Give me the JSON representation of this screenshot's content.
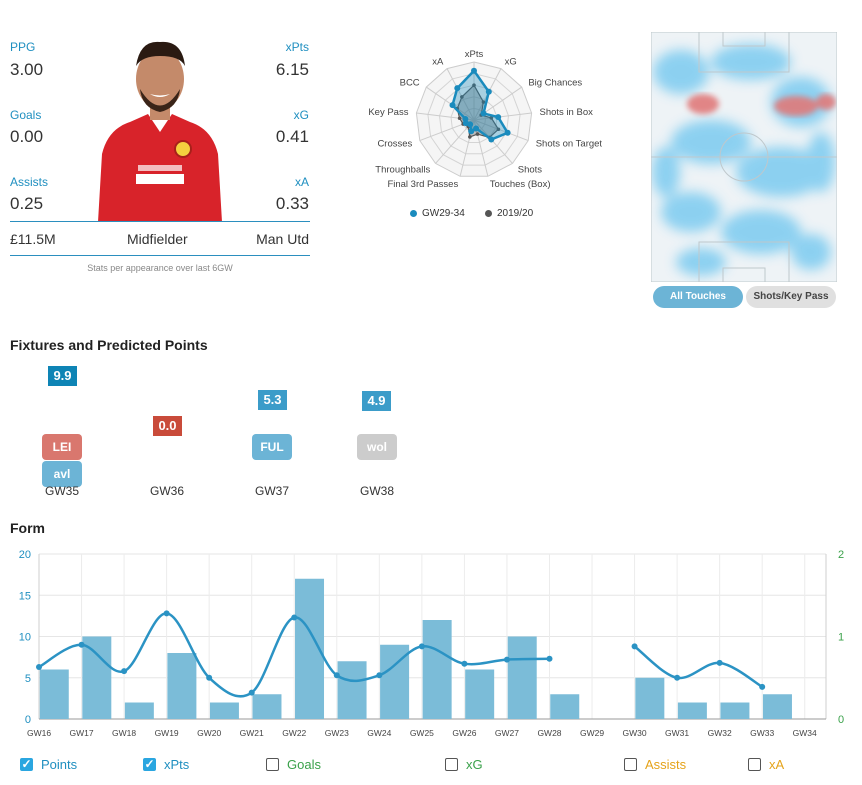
{
  "player": {
    "stats": [
      {
        "label": "PPG",
        "value": "3.00",
        "side": "left"
      },
      {
        "label": "xPts",
        "value": "6.15",
        "side": "right"
      },
      {
        "label": "Goals",
        "value": "0.00",
        "side": "left"
      },
      {
        "label": "xG",
        "value": "0.41",
        "side": "right"
      },
      {
        "label": "Assists",
        "value": "0.25",
        "side": "left"
      },
      {
        "label": "xA",
        "value": "0.33",
        "side": "right"
      }
    ],
    "price": "£11.5M",
    "position": "Midfielder",
    "team": "Man Utd",
    "footnote": "Stats per appearance over last 6GW"
  },
  "radar": {
    "axes": [
      "xPts",
      "xG",
      "Big Chances",
      "Shots in Box",
      "Shots on Target",
      "Shots",
      "Touches (Box)",
      "Final 3rd Passes",
      "Throughballs",
      "Crosses",
      "Key Pass",
      "BCC",
      "xA"
    ],
    "series": [
      {
        "name": "GW29-34",
        "color": "#1a8bbd",
        "values": [
          0.85,
          0.55,
          0.2,
          0.42,
          0.62,
          0.45,
          0.15,
          0.2,
          0.1,
          0.15,
          0.15,
          0.45,
          0.62
        ]
      },
      {
        "name": "2019/20",
        "color": "#555555",
        "values": [
          0.6,
          0.35,
          0.15,
          0.3,
          0.45,
          0.4,
          0.25,
          0.3,
          0.15,
          0.2,
          0.25,
          0.35,
          0.45
        ]
      }
    ]
  },
  "heatmap": {
    "tabs": [
      {
        "label": "All Touches",
        "active": true
      },
      {
        "label": "Shots/Key Pass",
        "active": false
      }
    ]
  },
  "fixtures": {
    "title": "Fixtures and Predicted Points",
    "items": [
      {
        "gw": "GW35",
        "points": "9.9",
        "points_color": "#0e84b5",
        "opponents": [
          {
            "name": "LEI",
            "color": "#d9776e"
          },
          {
            "name": "avl",
            "color": "#6cb4d6"
          }
        ]
      },
      {
        "gw": "GW36",
        "points": "0.0",
        "points_color": "#c94b3a",
        "opponents": []
      },
      {
        "gw": "GW37",
        "points": "5.3",
        "points_color": "#3b9cc9",
        "opponents": [
          {
            "name": "FUL",
            "color": "#6cb4d6"
          }
        ]
      },
      {
        "gw": "GW38",
        "points": "4.9",
        "points_color": "#3b9cc9",
        "opponents": [
          {
            "name": "wol",
            "color": "#cccccc"
          }
        ]
      }
    ]
  },
  "form": {
    "title": "Form",
    "legend": [
      {
        "label": "Points",
        "checked": true,
        "color": "#1f8fc0"
      },
      {
        "label": "xPts",
        "checked": true,
        "color": "#1f8fc0"
      },
      {
        "label": "Goals",
        "checked": false,
        "color": "#3aa14a"
      },
      {
        "label": "xG",
        "checked": false,
        "color": "#3aa14a"
      },
      {
        "label": "Assists",
        "checked": false,
        "color": "#e5a31a"
      },
      {
        "label": "xA",
        "checked": false,
        "color": "#e5a31a"
      }
    ]
  },
  "chart_data": {
    "type": "bar",
    "categories": [
      "GW16",
      "GW17",
      "GW18",
      "GW19",
      "GW20",
      "GW21",
      "GW22",
      "GW23",
      "GW24",
      "GW25",
      "GW26",
      "GW27",
      "GW28",
      "GW29",
      "GW30",
      "GW31",
      "GW32",
      "GW33",
      "GW34"
    ],
    "series": [
      {
        "name": "Points",
        "type": "bar",
        "color": "#7bbcd8",
        "values": [
          6,
          10,
          2,
          8,
          2,
          3,
          17,
          7,
          9,
          12,
          6,
          10,
          3,
          null,
          5,
          2,
          2,
          3,
          null
        ]
      },
      {
        "name": "xPts",
        "type": "line",
        "color": "#2b93c4",
        "values": [
          6.3,
          9,
          5.8,
          12.8,
          5,
          3.2,
          12.3,
          5.3,
          5.3,
          8.8,
          6.7,
          7.2,
          7.3,
          null,
          8.8,
          5,
          6.8,
          3.9,
          null
        ]
      }
    ],
    "ylim": [
      0,
      20
    ],
    "yticks": [
      "0",
      "5",
      "10",
      "15",
      "20"
    ],
    "y2ticks": [
      "0",
      "1",
      "2"
    ],
    "grid": true
  }
}
